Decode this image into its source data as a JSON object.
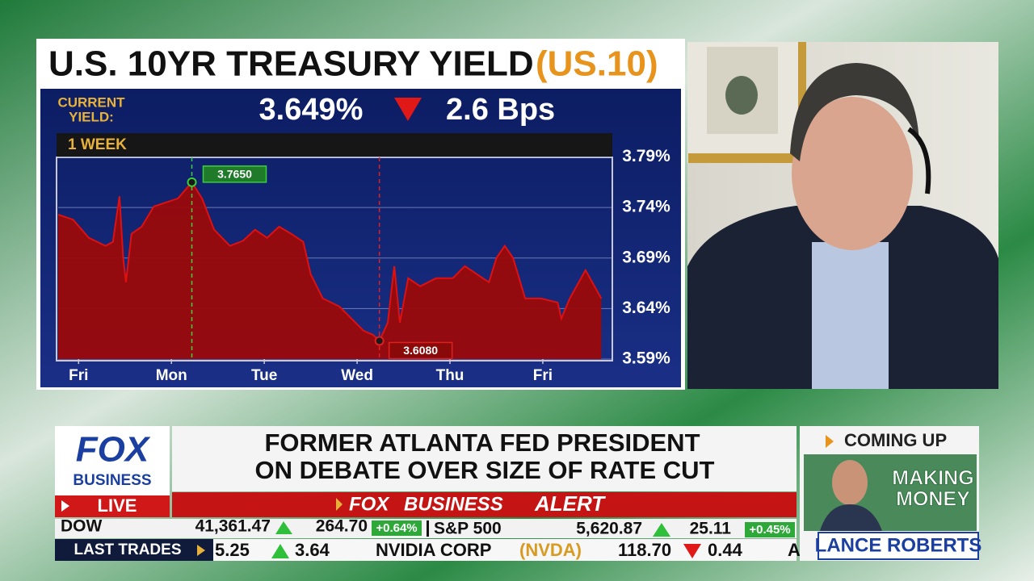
{
  "chart_data": {
    "type": "area",
    "title": "U.S. 10YR TREASURY YIELD",
    "symbol": "(US.10)",
    "period": "1 WEEK",
    "current_label": [
      "CURRENT",
      "YIELD:"
    ],
    "current_value": "3.649%",
    "change": "2.6 Bps",
    "x": [
      -0.22,
      -0.06,
      0.11,
      0.29,
      0.37,
      0.44,
      0.48,
      0.51,
      0.57,
      0.68,
      0.81,
      0.94,
      1.07,
      1.22,
      1.33,
      1.46,
      1.63,
      1.77,
      1.9,
      2.03,
      2.16,
      2.29,
      2.42,
      2.5,
      2.63,
      2.81,
      2.94,
      3.07,
      3.17,
      3.24,
      3.33,
      3.4,
      3.46,
      3.55,
      3.68,
      3.85,
      4.03,
      4.16,
      4.29,
      4.42,
      4.5,
      4.59,
      4.68,
      4.81,
      4.98,
      5.16,
      5.2,
      5.29,
      5.46,
      5.63
    ],
    "values": [
      3.733,
      3.728,
      3.71,
      3.702,
      3.706,
      3.751,
      3.69,
      3.666,
      3.714,
      3.721,
      3.741,
      3.745,
      3.749,
      3.765,
      3.749,
      3.718,
      3.702,
      3.707,
      3.718,
      3.71,
      3.721,
      3.714,
      3.706,
      3.674,
      3.65,
      3.642,
      3.63,
      3.618,
      3.614,
      3.608,
      3.626,
      3.682,
      3.626,
      3.67,
      3.662,
      3.67,
      3.67,
      3.682,
      3.674,
      3.666,
      3.69,
      3.702,
      3.69,
      3.65,
      3.65,
      3.646,
      3.63,
      3.65,
      3.678,
      3.65
    ],
    "color": "#e01010",
    "fill": "#9a0a0a",
    "xlim": [
      -0.22,
      5.74
    ],
    "xticks": [
      {
        "value": 0,
        "label": "Fri"
      },
      {
        "value": 1,
        "label": "Mon"
      },
      {
        "value": 2,
        "label": "Tue"
      },
      {
        "value": 3,
        "label": "Wed"
      },
      {
        "value": 4,
        "label": "Thu"
      },
      {
        "value": 5,
        "label": "Fri"
      }
    ],
    "ylim": [
      3.59,
      3.79
    ],
    "yticks": [
      {
        "value": 3.79,
        "label": "3.79%"
      },
      {
        "value": 3.74,
        "label": "3.74%"
      },
      {
        "value": 3.69,
        "label": "3.69%"
      },
      {
        "value": 3.64,
        "label": "3.64%"
      },
      {
        "value": 3.59,
        "label": "3.59%"
      }
    ],
    "grid": true,
    "annotations": [
      {
        "x": 1.22,
        "value": 3.765,
        "label": "3.7650",
        "color": "#3ad13a"
      },
      {
        "x": 3.24,
        "value": 3.608,
        "label": "3.6080",
        "color": "#e02020"
      }
    ]
  },
  "lower_third": {
    "logo": [
      "FOX",
      "BUSINESS"
    ],
    "live": "LIVE",
    "headline": [
      "FORMER ATLANTA FED PRESIDENT",
      "ON DEBATE OVER SIZE OF RATE CUT"
    ],
    "alert": [
      "FOX",
      "BUSINESS",
      "ALERT"
    ]
  },
  "ticker": {
    "row1": [
      "DOW",
      "41,361.47",
      "264.70",
      "+0.64%",
      "S&P 500",
      "5,620.87",
      "25.11",
      "+0.45%"
    ],
    "row2": [
      "LAST TRADES",
      "5.25",
      "3.64",
      "NVIDIA CORP",
      "(NVDA)",
      "118.70",
      "0.44",
      "A"
    ]
  },
  "coming_up": {
    "label": "COMING UP",
    "show": [
      "MAKING",
      "MONEY"
    ],
    "host": "LANCE ROBERTS"
  }
}
